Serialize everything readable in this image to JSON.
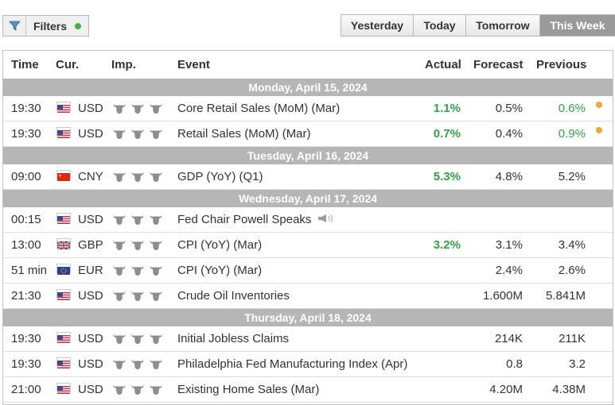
{
  "toolbar": {
    "filters_label": "Filters",
    "filters_status_color": "#41b34a",
    "range_tabs": [
      "Yesterday",
      "Today",
      "Tomorrow",
      "This Week"
    ],
    "active_tab": "This Week"
  },
  "table": {
    "columns": {
      "time": "Time",
      "currency": "Cur.",
      "importance": "Imp.",
      "event": "Event",
      "actual": "Actual",
      "forecast": "Forecast",
      "previous": "Previous"
    },
    "days": [
      {
        "label": "Monday, April 15, 2024",
        "events": [
          {
            "time": "19:30",
            "flag": "us-flag-icon",
            "currency": "USD",
            "importance": 3,
            "event": "Core Retail Sales (MoM) (Mar)",
            "actual": "1.1%",
            "forecast": "0.5%",
            "previous": "0.6%",
            "actual_color": "green",
            "previous_color": "green",
            "revised_dot": true
          },
          {
            "time": "19:30",
            "flag": "us-flag-icon",
            "currency": "USD",
            "importance": 3,
            "event": "Retail Sales (MoM) (Mar)",
            "actual": "0.7%",
            "forecast": "0.4%",
            "previous": "0.9%",
            "actual_color": "green",
            "previous_color": "green",
            "revised_dot": true
          }
        ]
      },
      {
        "label": "Tuesday, April 16, 2024",
        "events": [
          {
            "time": "09:00",
            "flag": "china-flag-icon",
            "currency": "CNY",
            "importance": 3,
            "event": "GDP (YoY) (Q1)",
            "actual": "5.3%",
            "forecast": "4.8%",
            "previous": "5.2%",
            "actual_color": "green",
            "previous_color": "default",
            "revised_dot": false
          }
        ]
      },
      {
        "label": "Wednesday, April 17, 2024",
        "events": [
          {
            "time": "00:15",
            "flag": "us-flag-icon",
            "currency": "USD",
            "importance": 3,
            "event": "Fed Chair Powell Speaks",
            "actual": "",
            "forecast": "",
            "previous": "",
            "actual_color": "default",
            "previous_color": "default",
            "revised_dot": false,
            "speech_icon": "speaker-icon"
          },
          {
            "time": "13:00",
            "flag": "uk-flag-icon",
            "currency": "GBP",
            "importance": 3,
            "event": "CPI (YoY) (Mar)",
            "actual": "3.2%",
            "forecast": "3.1%",
            "previous": "3.4%",
            "actual_color": "green",
            "previous_color": "default",
            "revised_dot": false
          },
          {
            "time": "51 min",
            "flag": "eu-flag-icon",
            "currency": "EUR",
            "importance": 3,
            "event": "CPI (YoY) (Mar)",
            "actual": "",
            "forecast": "2.4%",
            "previous": "2.6%",
            "actual_color": "default",
            "previous_color": "default",
            "revised_dot": false
          },
          {
            "time": "21:30",
            "flag": "us-flag-icon",
            "currency": "USD",
            "importance": 3,
            "event": "Crude Oil Inventories",
            "actual": "",
            "forecast": "1.600M",
            "previous": "5.841M",
            "actual_color": "default",
            "previous_color": "default",
            "revised_dot": false
          }
        ]
      },
      {
        "label": "Thursday, April 18, 2024",
        "events": [
          {
            "time": "19:30",
            "flag": "us-flag-icon",
            "currency": "USD",
            "importance": 3,
            "event": "Initial Jobless Claims",
            "actual": "",
            "forecast": "214K",
            "previous": "211K",
            "actual_color": "default",
            "previous_color": "default",
            "revised_dot": false
          },
          {
            "time": "19:30",
            "flag": "us-flag-icon",
            "currency": "USD",
            "importance": 3,
            "event": "Philadelphia Fed Manufacturing Index (Apr)",
            "actual": "",
            "forecast": "0.8",
            "previous": "3.2",
            "actual_color": "default",
            "previous_color": "default",
            "revised_dot": false
          },
          {
            "time": "21:00",
            "flag": "us-flag-icon",
            "currency": "USD",
            "importance": 3,
            "event": "Existing Home Sales (Mar)",
            "actual": "",
            "forecast": "4.20M",
            "previous": "4.38M",
            "actual_color": "default",
            "previous_color": "default",
            "revised_dot": false
          }
        ]
      }
    ]
  },
  "colors": {
    "positive": "#2fa544",
    "revised_dot": "#f0a830",
    "day_header_bg": "#b6b6b6",
    "active_tab_bg": "#9a9a9a"
  }
}
